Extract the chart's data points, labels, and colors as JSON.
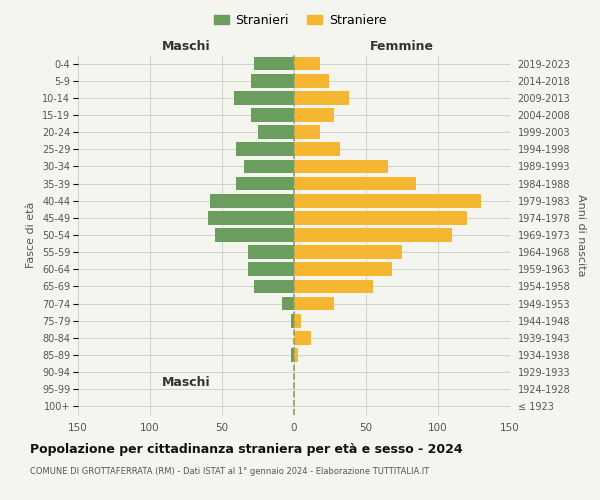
{
  "age_groups": [
    "100+",
    "95-99",
    "90-94",
    "85-89",
    "80-84",
    "75-79",
    "70-74",
    "65-69",
    "60-64",
    "55-59",
    "50-54",
    "45-49",
    "40-44",
    "35-39",
    "30-34",
    "25-29",
    "20-24",
    "15-19",
    "10-14",
    "5-9",
    "0-4"
  ],
  "birth_years": [
    "≤ 1923",
    "1924-1928",
    "1929-1933",
    "1934-1938",
    "1939-1943",
    "1944-1948",
    "1949-1953",
    "1954-1958",
    "1959-1963",
    "1964-1968",
    "1969-1973",
    "1974-1978",
    "1979-1983",
    "1984-1988",
    "1989-1993",
    "1994-1998",
    "1999-2003",
    "2004-2008",
    "2009-2013",
    "2014-2018",
    "2019-2023"
  ],
  "maschi": [
    0,
    0,
    0,
    2,
    0,
    2,
    8,
    28,
    32,
    32,
    55,
    60,
    58,
    40,
    35,
    40,
    25,
    30,
    42,
    30,
    28
  ],
  "femmine": [
    0,
    0,
    0,
    3,
    12,
    5,
    28,
    55,
    68,
    75,
    110,
    120,
    130,
    85,
    65,
    32,
    18,
    28,
    38,
    24,
    18
  ],
  "color_maschi": "#6b9e5e",
  "color_femmine": "#f5b731",
  "background_color": "#f5f5f0",
  "title": "Popolazione per cittadinanza straniera per età e sesso - 2024",
  "subtitle": "COMUNE DI GROTTAFERRATA (RM) - Dati ISTAT al 1° gennaio 2024 - Elaborazione TUTTITALIA.IT",
  "xlabel_left": "Maschi",
  "xlabel_right": "Femmine",
  "ylabel_left": "Fasce di età",
  "ylabel_right": "Anni di nascita",
  "legend_maschi": "Stranieri",
  "legend_femmine": "Straniere",
  "xlim": 150,
  "bar_height": 0.8
}
